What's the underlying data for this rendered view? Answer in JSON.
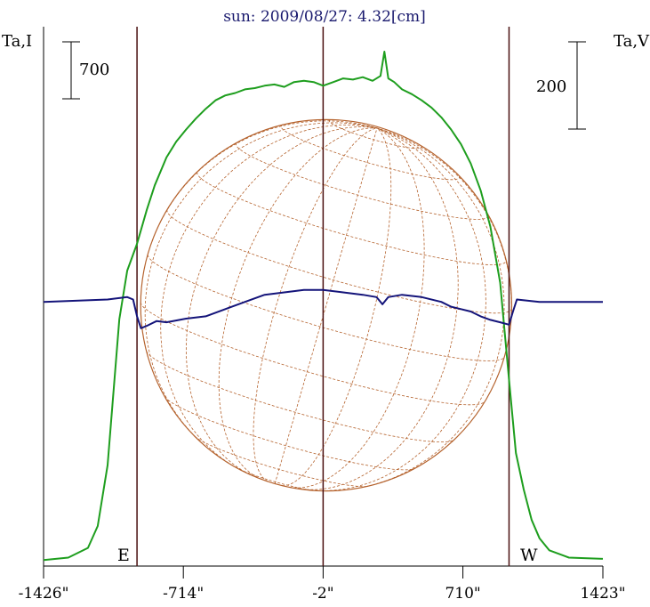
{
  "chart_data": {
    "type": "line",
    "title": "sun: 2009/08/27: 4.32[cm]",
    "left_axis_label": "Ta,I",
    "right_axis_label": "Ta,V",
    "scale_left": "700",
    "scale_right": "200",
    "limb_labels": {
      "east": "E",
      "west": "W"
    },
    "x_range": [
      -1426,
      1423
    ],
    "x_ticks": [
      {
        "value": -1426,
        "label": "-1426\""
      },
      {
        "value": -714,
        "label": "-714\""
      },
      {
        "value": -2,
        "label": "-2\""
      },
      {
        "value": 710,
        "label": "710\""
      },
      {
        "value": 1423,
        "label": "1423\""
      }
    ],
    "vertical_lines": [
      -950,
      -2,
      945
    ],
    "solar_radius": 945,
    "y_range_I": [
      0,
      4200
    ],
    "y_range_V": [
      -1100,
      1150
    ],
    "series": [
      {
        "name": "Ta,I",
        "color": "#1e9e1e",
        "points": [
          [
            -1426,
            20
          ],
          [
            -1300,
            40
          ],
          [
            -1200,
            120
          ],
          [
            -1150,
            300
          ],
          [
            -1100,
            800
          ],
          [
            -1070,
            1400
          ],
          [
            -1040,
            2000
          ],
          [
            -1000,
            2400
          ],
          [
            -950,
            2620
          ],
          [
            -900,
            2900
          ],
          [
            -860,
            3100
          ],
          [
            -800,
            3330
          ],
          [
            -750,
            3460
          ],
          [
            -700,
            3560
          ],
          [
            -650,
            3650
          ],
          [
            -600,
            3730
          ],
          [
            -550,
            3800
          ],
          [
            -500,
            3840
          ],
          [
            -450,
            3860
          ],
          [
            -400,
            3890
          ],
          [
            -350,
            3900
          ],
          [
            -300,
            3920
          ],
          [
            -250,
            3930
          ],
          [
            -200,
            3910
          ],
          [
            -150,
            3950
          ],
          [
            -100,
            3960
          ],
          [
            -50,
            3950
          ],
          [
            -2,
            3920
          ],
          [
            50,
            3950
          ],
          [
            100,
            3980
          ],
          [
            150,
            3970
          ],
          [
            200,
            3990
          ],
          [
            250,
            3960
          ],
          [
            290,
            4000
          ],
          [
            310,
            4200
          ],
          [
            330,
            3980
          ],
          [
            360,
            3950
          ],
          [
            400,
            3890
          ],
          [
            450,
            3850
          ],
          [
            500,
            3800
          ],
          [
            550,
            3740
          ],
          [
            600,
            3660
          ],
          [
            650,
            3560
          ],
          [
            700,
            3440
          ],
          [
            750,
            3280
          ],
          [
            800,
            3060
          ],
          [
            850,
            2760
          ],
          [
            900,
            2300
          ],
          [
            945,
            1500
          ],
          [
            980,
            900
          ],
          [
            1020,
            600
          ],
          [
            1060,
            350
          ],
          [
            1100,
            200
          ],
          [
            1150,
            100
          ],
          [
            1250,
            40
          ],
          [
            1423,
            30
          ]
        ]
      },
      {
        "name": "Ta,V",
        "color": "#14147a",
        "points": [
          [
            -1426,
            0
          ],
          [
            -1100,
            10
          ],
          [
            -1000,
            20
          ],
          [
            -970,
            10
          ],
          [
            -950,
            -60
          ],
          [
            -930,
            -110
          ],
          [
            -900,
            -100
          ],
          [
            -850,
            -80
          ],
          [
            -800,
            -85
          ],
          [
            -700,
            -70
          ],
          [
            -600,
            -60
          ],
          [
            -500,
            -30
          ],
          [
            -400,
            0
          ],
          [
            -300,
            30
          ],
          [
            -200,
            40
          ],
          [
            -100,
            50
          ],
          [
            -2,
            50
          ],
          [
            100,
            40
          ],
          [
            200,
            30
          ],
          [
            270,
            20
          ],
          [
            300,
            -10
          ],
          [
            330,
            20
          ],
          [
            400,
            30
          ],
          [
            500,
            20
          ],
          [
            600,
            0
          ],
          [
            650,
            -20
          ],
          [
            700,
            -30
          ],
          [
            750,
            -40
          ],
          [
            800,
            -60
          ],
          [
            850,
            -75
          ],
          [
            900,
            -85
          ],
          [
            945,
            -95
          ],
          [
            965,
            -40
          ],
          [
            985,
            10
          ],
          [
            1100,
            0
          ],
          [
            1423,
            0
          ]
        ]
      }
    ]
  }
}
